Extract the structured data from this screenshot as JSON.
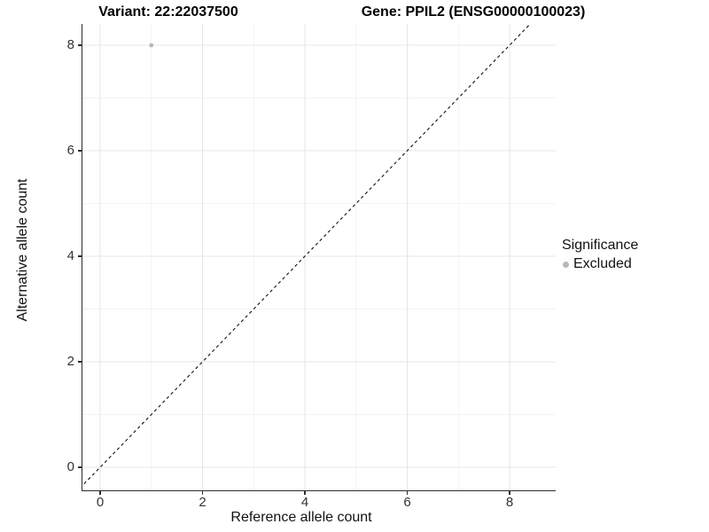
{
  "titles": {
    "variant": "Variant: 22:22037500",
    "gene": "Gene: PPIL2 (ENSG00000100023)"
  },
  "axes": {
    "x_label": "Reference allele count",
    "y_label": "Alternative allele count",
    "x_ticks": [
      "0",
      "2",
      "4",
      "6",
      "8"
    ],
    "y_ticks": [
      "0",
      "2",
      "4",
      "6",
      "8"
    ]
  },
  "legend": {
    "title": "Significance",
    "items": [
      {
        "label": "Excluded",
        "color": "#b8b8b8"
      }
    ]
  },
  "chart_data": {
    "type": "scatter",
    "title": "Variant: 22:22037500 | Gene: PPIL2 (ENSG00000100023)",
    "xlabel": "Reference allele count",
    "ylabel": "Alternative allele count",
    "xlim": [
      -0.35,
      8.9
    ],
    "ylim": [
      -0.45,
      8.4
    ],
    "x_breaks": [
      0,
      2,
      4,
      6,
      8
    ],
    "y_breaks": [
      0,
      2,
      4,
      6,
      8
    ],
    "minor_breaks": [
      1,
      3,
      5,
      7
    ],
    "grid": true,
    "points": [
      {
        "x": 1,
        "y": 8,
        "series": "Excluded",
        "color": "#b8b8b8"
      }
    ],
    "reference_line": {
      "type": "identity",
      "style": "dashed",
      "color": "#111111"
    },
    "legend": {
      "title": "Significance",
      "position": "right",
      "entries": [
        "Excluded"
      ]
    },
    "colors": {
      "background": "#ffffff",
      "grid_major": "#e7e7e7",
      "grid_minor": "#efefef",
      "axis_line": "#2b2b2b",
      "point": "#b8b8b8"
    }
  }
}
